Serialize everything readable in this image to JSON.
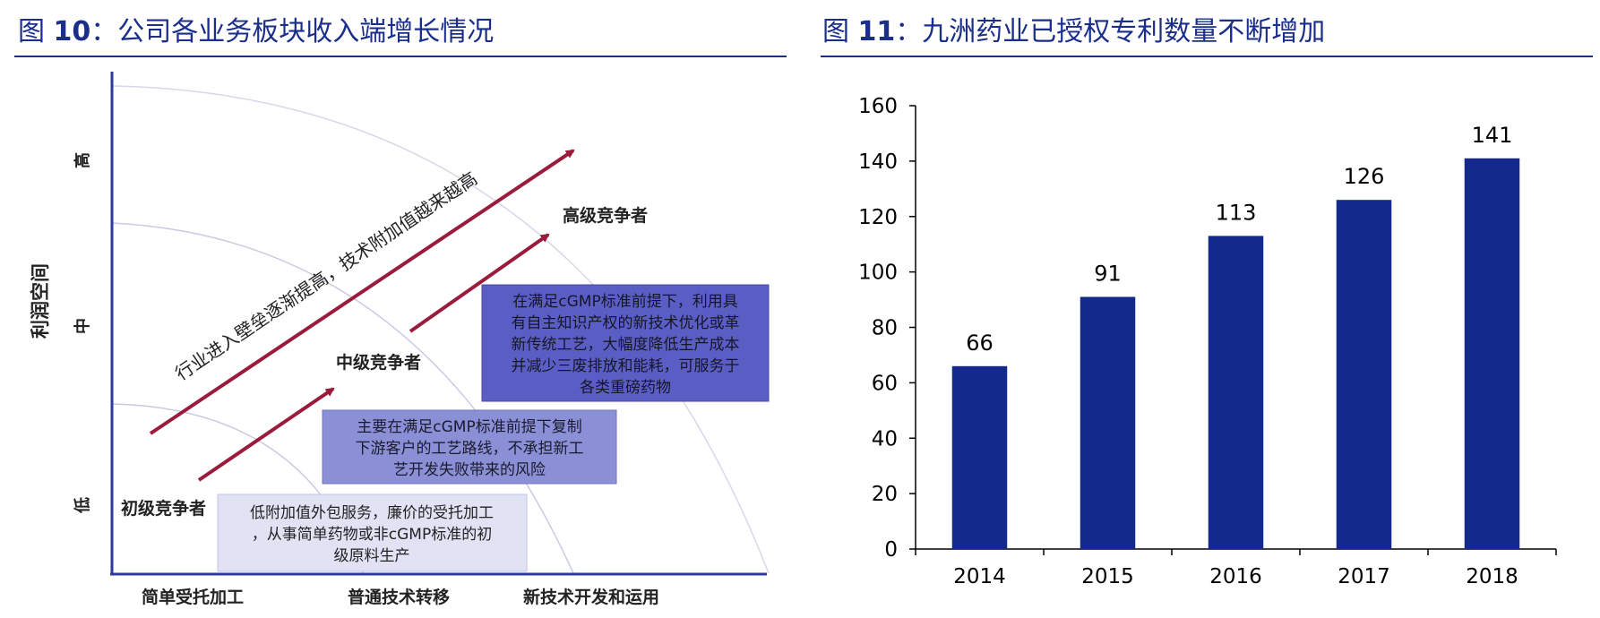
{
  "left_panel": {
    "fig_prefix": "图",
    "fig_number": "10",
    "fig_caption": "公司各业务板块收入端增长情况",
    "y_axis_label": "利润空间",
    "y_levels": [
      "高",
      "中",
      "低"
    ],
    "x_levels": [
      "简单受托加工",
      "普通技术转移",
      "新技术开发和运用"
    ],
    "arrow_text": "行业进入壁垒逐渐提高，技术附加值越来越高",
    "tiers": [
      {
        "name": "初级竞争者",
        "box_lines": [
          "低附加值外包服务，廉价的受托加工",
          "，从事简单药物或非cGMP标准的初",
          "级原料生产"
        ],
        "box_color": "#e1e3f5"
      },
      {
        "name": "中级竞争者",
        "box_lines": [
          "主要在满足cGMP标准前提下复制",
          "下游客户的工艺路线，不承担新工",
          "艺开发失败带来的风险"
        ],
        "box_color": "#8a8fd6"
      },
      {
        "name": "高级竞争者",
        "box_lines": [
          "在满足cGMP标准前提下，利用具",
          "有自主知识产权的新技术优化或革",
          "新传统工艺，大幅度降低生产成本",
          "并减少三废排放和能耗，可服务于",
          "各类重磅药物"
        ],
        "box_color": "#5a5ec4"
      }
    ],
    "colors": {
      "axis": "#2c3aa0",
      "arrow": "#9b1b3d"
    }
  },
  "right_panel": {
    "fig_prefix": "图",
    "fig_number": "11",
    "fig_caption": "九洲药业已授权专利数量不断增加",
    "colors": {
      "bar": "#132a8c",
      "axis": "#000000"
    }
  },
  "chart_data": [
    {
      "type": "bar",
      "title": "九洲药业已授权专利数量不断增加",
      "categories": [
        "2014",
        "2015",
        "2016",
        "2017",
        "2018"
      ],
      "values": [
        66,
        91,
        113,
        126,
        141
      ],
      "data_labels": [
        "66",
        "91",
        "113",
        "126",
        "141"
      ],
      "ylim": [
        0,
        160
      ],
      "yticks": [
        0,
        20,
        40,
        60,
        80,
        100,
        120,
        140,
        160
      ],
      "xlabel": "",
      "ylabel": "",
      "grid": false,
      "legend": "none"
    }
  ]
}
